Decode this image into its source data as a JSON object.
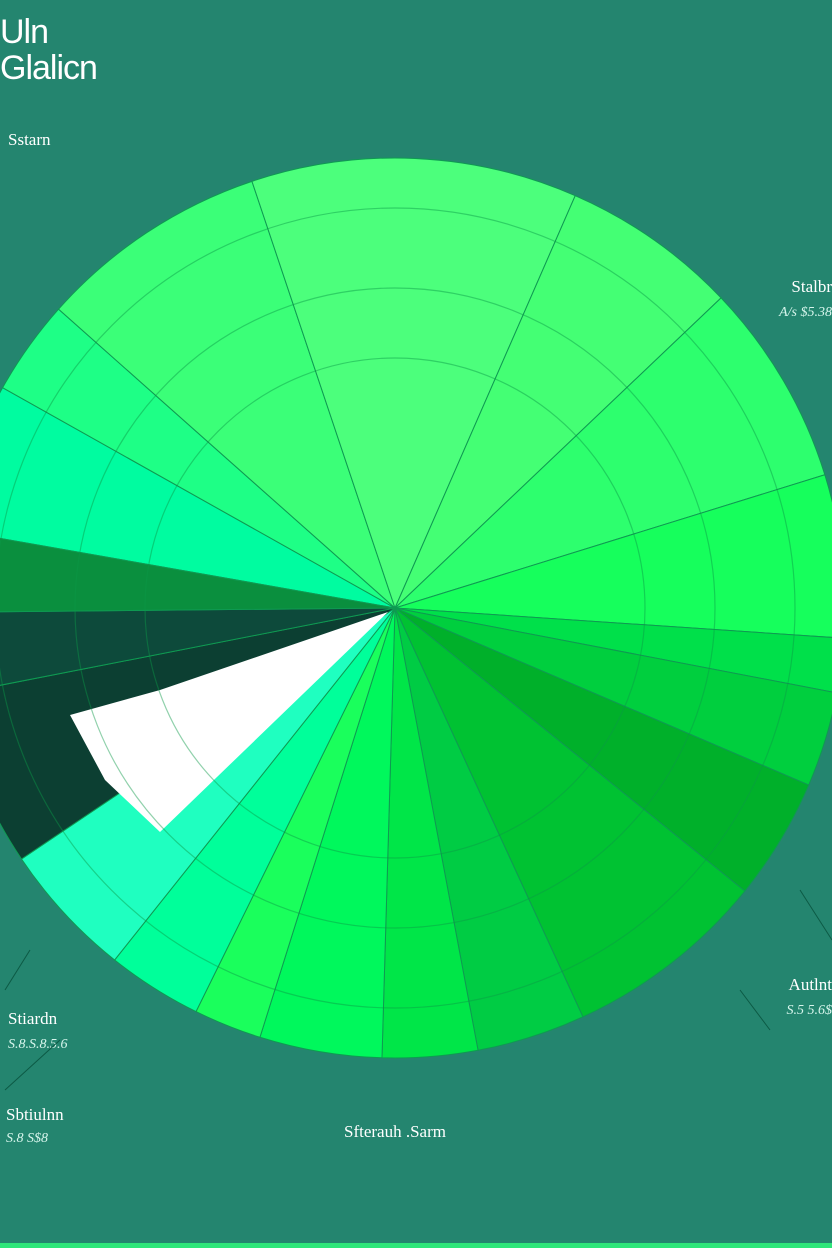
{
  "header": {
    "title_line1": "Uln",
    "title_line2": "Glalicn"
  },
  "chart_data": {
    "type": "pie",
    "categories": [
      "",
      "",
      "",
      "",
      "",
      "",
      "",
      "",
      "",
      "",
      "",
      "",
      "",
      "",
      "",
      "",
      "",
      "",
      "",
      ""
    ],
    "values": [
      5.5,
      3.5,
      8.5,
      12,
      6.5,
      7.5,
      6,
      2,
      3.5,
      4.5,
      7.5,
      4,
      3.5,
      4.5,
      2.5,
      3.5,
      5,
      6.5,
      3,
      3
    ],
    "colors": [
      "#00fca0",
      "#1eff86",
      "#3bff78",
      "#4cff7c",
      "#44ff74",
      "#2dff6e",
      "#16ff5c",
      "#00e04a",
      "#00cf3e",
      "#00b02a",
      "#00c232",
      "#00cc44",
      "#00e648",
      "#00f85c",
      "#1aff5c",
      "#00ff9a",
      "#1fffc0",
      "#0c3f32",
      "#0d4a3b",
      "#0a8f3e"
    ],
    "annotations": [
      {
        "name": "Sstarn",
        "sub": ""
      },
      {
        "name": "Stalbr",
        "sub": "A/s $5.38"
      },
      {
        "name": "Autlnt",
        "sub": "S.5 5.6$"
      },
      {
        "name": "Stiardn",
        "sub": "S.8.S.8.5.6"
      },
      {
        "name": "Sbtiulnn",
        "sub": "S.8 S$8"
      },
      {
        "name": "Sfterauh .Sarm",
        "sub": ""
      }
    ]
  },
  "theme": {
    "background": "#24856f",
    "label_color": "#ffffff",
    "sublabel_color": "#d6f5ec"
  }
}
